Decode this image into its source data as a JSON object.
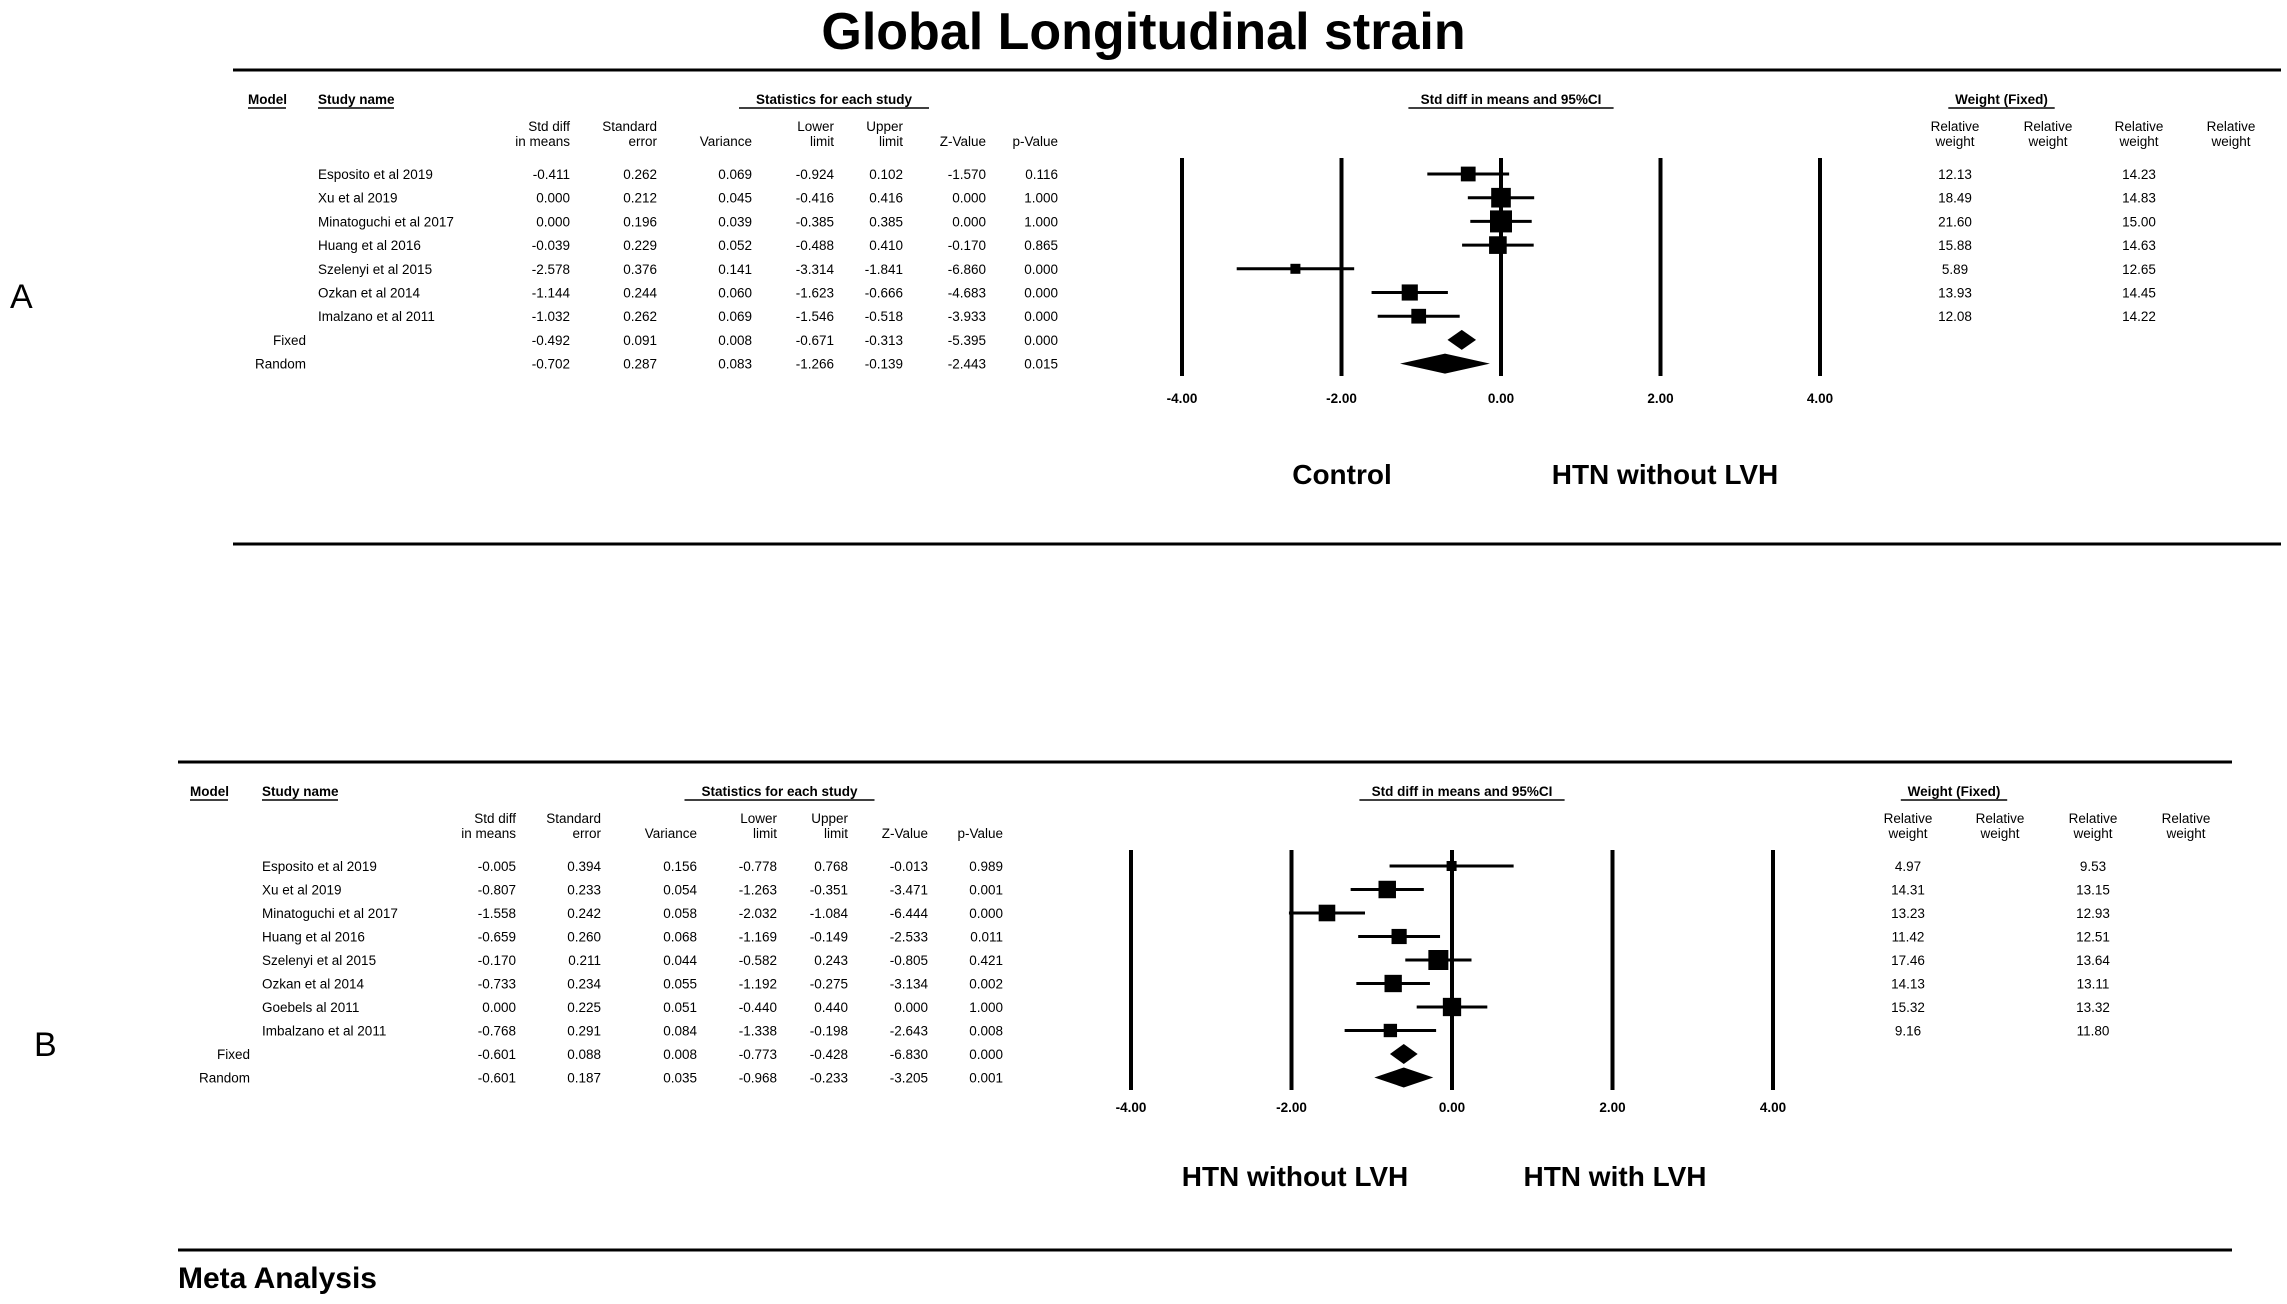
{
  "title": "Global Longitudinal strain",
  "footer": "Meta Analysis",
  "headers": {
    "model": "Model",
    "study_name": "Study name",
    "stats_group": "Statistics for each study",
    "forest_group": "Std diff in means and 95%CI",
    "weight_group": "Weight (Fixed)",
    "stat_cols": [
      [
        "Std diff",
        "in means"
      ],
      [
        "Standard",
        "error"
      ],
      [
        "",
        "Variance"
      ],
      [
        "Lower",
        "limit"
      ],
      [
        "Upper",
        "limit"
      ],
      [
        "",
        "Z-Value"
      ],
      [
        "",
        "p-Value"
      ]
    ],
    "weight_cols": [
      [
        "Relative",
        "weight"
      ],
      [
        "Relative",
        "weight"
      ],
      [
        "Relative",
        "weight"
      ],
      [
        "Relative",
        "weight"
      ]
    ]
  },
  "chart_data": [
    {
      "type": "forest",
      "panel": "A",
      "x_ticks": [
        "-4.00",
        "-2.00",
        "0.00",
        "2.00",
        "4.00"
      ],
      "xlim": [
        -4,
        4
      ],
      "favours_left": "Control",
      "favours_right": "HTN without LVH",
      "rows": [
        {
          "model": "",
          "study": "Esposito et al 2019",
          "stats": [
            "-0.411",
            "0.262",
            "0.069",
            "-0.924",
            "0.102",
            "-1.570",
            "0.116"
          ],
          "est": -0.411,
          "lo": -0.924,
          "hi": 0.102,
          "w1": "12.13",
          "w2": "14.23"
        },
        {
          "model": "",
          "study": "Xu et al 2019",
          "stats": [
            "0.000",
            "0.212",
            "0.045",
            "-0.416",
            "0.416",
            "0.000",
            "1.000"
          ],
          "est": 0.0,
          "lo": -0.416,
          "hi": 0.416,
          "w1": "18.49",
          "w2": "14.83"
        },
        {
          "model": "",
          "study": "Minatoguchi et al 2017",
          "stats": [
            "0.000",
            "0.196",
            "0.039",
            "-0.385",
            "0.385",
            "0.000",
            "1.000"
          ],
          "est": 0.0,
          "lo": -0.385,
          "hi": 0.385,
          "w1": "21.60",
          "w2": "15.00"
        },
        {
          "model": "",
          "study": "Huang et al 2016",
          "stats": [
            "-0.039",
            "0.229",
            "0.052",
            "-0.488",
            "0.410",
            "-0.170",
            "0.865"
          ],
          "est": -0.039,
          "lo": -0.488,
          "hi": 0.41,
          "w1": "15.88",
          "w2": "14.63"
        },
        {
          "model": "",
          "study": "Szelenyi et al 2015",
          "stats": [
            "-2.578",
            "0.376",
            "0.141",
            "-3.314",
            "-1.841",
            "-6.860",
            "0.000"
          ],
          "est": -2.578,
          "lo": -3.314,
          "hi": -1.841,
          "w1": "5.89",
          "w2": "12.65"
        },
        {
          "model": "",
          "study": "Ozkan et al 2014",
          "stats": [
            "-1.144",
            "0.244",
            "0.060",
            "-1.623",
            "-0.666",
            "-4.683",
            "0.000"
          ],
          "est": -1.144,
          "lo": -1.623,
          "hi": -0.666,
          "w1": "13.93",
          "w2": "14.45"
        },
        {
          "model": "",
          "study": "Imalzano et al 2011",
          "stats": [
            "-1.032",
            "0.262",
            "0.069",
            "-1.546",
            "-0.518",
            "-3.933",
            "0.000"
          ],
          "est": -1.032,
          "lo": -1.546,
          "hi": -0.518,
          "w1": "12.08",
          "w2": "14.22"
        },
        {
          "model": "Fixed",
          "study": "",
          "stats": [
            "-0.492",
            "0.091",
            "0.008",
            "-0.671",
            "-0.313",
            "-5.395",
            "0.000"
          ],
          "est": -0.492,
          "lo": -0.671,
          "hi": -0.313,
          "w1": "",
          "w2": "",
          "summary": true
        },
        {
          "model": "Random",
          "study": "",
          "stats": [
            "-0.702",
            "0.287",
            "0.083",
            "-1.266",
            "-0.139",
            "-2.443",
            "0.015"
          ],
          "est": -0.702,
          "lo": -1.266,
          "hi": -0.139,
          "w1": "",
          "w2": "",
          "summary": true
        }
      ]
    },
    {
      "type": "forest",
      "panel": "B",
      "x_ticks": [
        "-4.00",
        "-2.00",
        "0.00",
        "2.00",
        "4.00"
      ],
      "xlim": [
        -4,
        4
      ],
      "favours_left": "HTN without LVH",
      "favours_right": "HTN with LVH",
      "rows": [
        {
          "model": "",
          "study": "Esposito et al 2019",
          "stats": [
            "-0.005",
            "0.394",
            "0.156",
            "-0.778",
            "0.768",
            "-0.013",
            "0.989"
          ],
          "est": -0.005,
          "lo": -0.778,
          "hi": 0.768,
          "w1": "4.97",
          "w2": "9.53"
        },
        {
          "model": "",
          "study": "Xu et al 2019",
          "stats": [
            "-0.807",
            "0.233",
            "0.054",
            "-1.263",
            "-0.351",
            "-3.471",
            "0.001"
          ],
          "est": -0.807,
          "lo": -1.263,
          "hi": -0.351,
          "w1": "14.31",
          "w2": "13.15"
        },
        {
          "model": "",
          "study": "Minatoguchi et al 2017",
          "stats": [
            "-1.558",
            "0.242",
            "0.058",
            "-2.032",
            "-1.084",
            "-6.444",
            "0.000"
          ],
          "est": -1.558,
          "lo": -2.032,
          "hi": -1.084,
          "w1": "13.23",
          "w2": "12.93"
        },
        {
          "model": "",
          "study": "Huang et al 2016",
          "stats": [
            "-0.659",
            "0.260",
            "0.068",
            "-1.169",
            "-0.149",
            "-2.533",
            "0.011"
          ],
          "est": -0.659,
          "lo": -1.169,
          "hi": -0.149,
          "w1": "11.42",
          "w2": "12.51"
        },
        {
          "model": "",
          "study": "Szelenyi et al 2015",
          "stats": [
            "-0.170",
            "0.211",
            "0.044",
            "-0.582",
            "0.243",
            "-0.805",
            "0.421"
          ],
          "est": -0.17,
          "lo": -0.582,
          "hi": 0.243,
          "w1": "17.46",
          "w2": "13.64"
        },
        {
          "model": "",
          "study": "Ozkan et al 2014",
          "stats": [
            "-0.733",
            "0.234",
            "0.055",
            "-1.192",
            "-0.275",
            "-3.134",
            "0.002"
          ],
          "est": -0.733,
          "lo": -1.192,
          "hi": -0.275,
          "w1": "14.13",
          "w2": "13.11"
        },
        {
          "model": "",
          "study": "Goebels al 2011",
          "stats": [
            "0.000",
            "0.225",
            "0.051",
            "-0.440",
            "0.440",
            "0.000",
            "1.000"
          ],
          "est": 0.0,
          "lo": -0.44,
          "hi": 0.44,
          "w1": "15.32",
          "w2": "13.32"
        },
        {
          "model": "",
          "study": "Imbalzano et al 2011",
          "stats": [
            "-0.768",
            "0.291",
            "0.084",
            "-1.338",
            "-0.198",
            "-2.643",
            "0.008"
          ],
          "est": -0.768,
          "lo": -1.338,
          "hi": -0.198,
          "w1": "9.16",
          "w2": "11.80"
        },
        {
          "model": "Fixed",
          "study": "",
          "stats": [
            "-0.601",
            "0.088",
            "0.008",
            "-0.773",
            "-0.428",
            "-6.830",
            "0.000"
          ],
          "est": -0.601,
          "lo": -0.773,
          "hi": -0.428,
          "w1": "",
          "w2": "",
          "summary": true
        },
        {
          "model": "Random",
          "study": "",
          "stats": [
            "-0.601",
            "0.187",
            "0.035",
            "-0.968",
            "-0.233",
            "-3.205",
            "0.001"
          ],
          "est": -0.601,
          "lo": -0.968,
          "hi": -0.233,
          "w1": "",
          "w2": "",
          "summary": true
        }
      ]
    }
  ]
}
